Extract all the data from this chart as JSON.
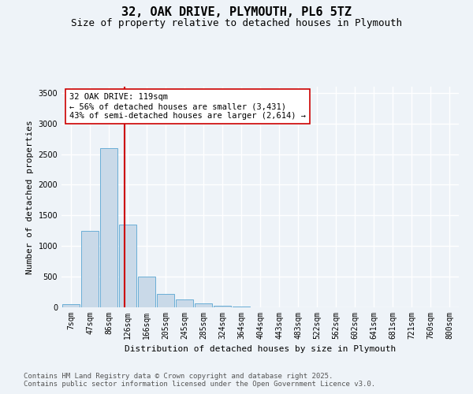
{
  "title_line1": "32, OAK DRIVE, PLYMOUTH, PL6 5TZ",
  "title_line2": "Size of property relative to detached houses in Plymouth",
  "xlabel": "Distribution of detached houses by size in Plymouth",
  "ylabel": "Number of detached properties",
  "categories": [
    "7sqm",
    "47sqm",
    "86sqm",
    "126sqm",
    "166sqm",
    "205sqm",
    "245sqm",
    "285sqm",
    "324sqm",
    "364sqm",
    "404sqm",
    "443sqm",
    "483sqm",
    "522sqm",
    "562sqm",
    "602sqm",
    "641sqm",
    "681sqm",
    "721sqm",
    "760sqm",
    "800sqm"
  ],
  "values": [
    50,
    1250,
    2600,
    1350,
    500,
    220,
    130,
    60,
    30,
    10,
    5,
    3,
    2,
    1,
    0,
    0,
    0,
    0,
    0,
    0,
    0
  ],
  "bar_color": "#c9d9e8",
  "bar_edge_color": "#6aaed6",
  "vline_color": "#cc0000",
  "annotation_text": "32 OAK DRIVE: 119sqm\n← 56% of detached houses are smaller (3,431)\n43% of semi-detached houses are larger (2,614) →",
  "annotation_box_color": "#ffffff",
  "annotation_box_edge_color": "#cc0000",
  "ylim": [
    0,
    3600
  ],
  "yticks": [
    0,
    500,
    1000,
    1500,
    2000,
    2500,
    3000,
    3500
  ],
  "bg_color": "#eef3f8",
  "plot_bg_color": "#eef3f8",
  "grid_color": "#ffffff",
  "footer_line1": "Contains HM Land Registry data © Crown copyright and database right 2025.",
  "footer_line2": "Contains public sector information licensed under the Open Government Licence v3.0.",
  "title_fontsize": 11,
  "subtitle_fontsize": 9,
  "annotation_fontsize": 7.5,
  "footer_fontsize": 6.5,
  "axis_label_fontsize": 8,
  "tick_fontsize": 7
}
